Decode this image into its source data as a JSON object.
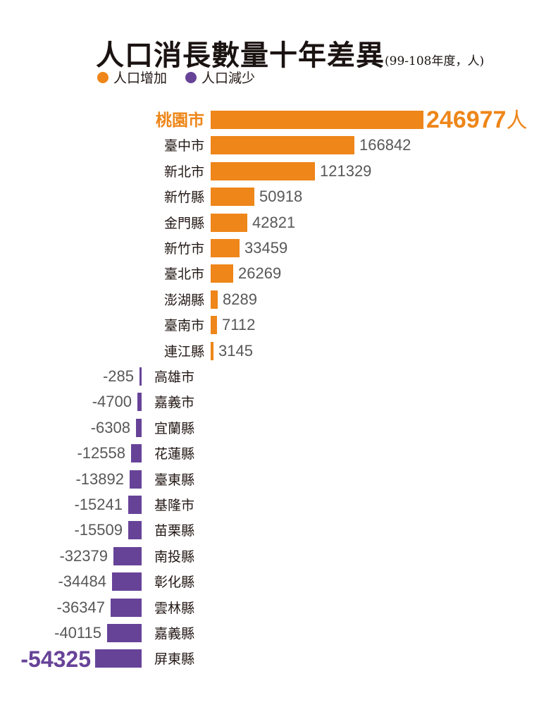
{
  "title": {
    "main": "人口消長數量十年差異",
    "sub": "(99-108年度，人)"
  },
  "legend": [
    {
      "label": "人口增加",
      "color": "#ee8619"
    },
    {
      "label": "人口減少",
      "color": "#674398"
    }
  ],
  "colors": {
    "positive": "#ee8619",
    "negative": "#674398",
    "value_text": "#595757"
  },
  "chart_data": {
    "type": "bar",
    "orientation": "horizontal",
    "title": "人口消長數量十年差異",
    "subtitle": "(99-108年度，人)",
    "unit": "人",
    "legend": [
      "人口增加",
      "人口減少"
    ],
    "legend_position": "top-left",
    "grid": false,
    "categories": [
      "桃園市",
      "臺中市",
      "新北市",
      "新竹縣",
      "金門縣",
      "新竹市",
      "臺北市",
      "澎湖縣",
      "臺南市",
      "連江縣",
      "高雄市",
      "嘉義市",
      "宜蘭縣",
      "花蓮縣",
      "臺東縣",
      "基隆市",
      "苗栗縣",
      "南投縣",
      "彰化縣",
      "雲林縣",
      "嘉義縣",
      "屏東縣"
    ],
    "values": [
      246977,
      166842,
      121329,
      50918,
      42821,
      33459,
      26269,
      8289,
      7112,
      3145,
      -285,
      -4700,
      -6308,
      -12558,
      -13892,
      -15241,
      -15509,
      -32379,
      -34484,
      -36347,
      -40115,
      -54325
    ],
    "highlighted": {
      "max": "桃園市",
      "min": "屏東縣"
    }
  },
  "rows": [
    {
      "name": "桃園市",
      "value": 246977,
      "display": "246977",
      "unit": "人"
    },
    {
      "name": "臺中市",
      "value": 166842,
      "display": "166842"
    },
    {
      "name": "新北市",
      "value": 121329,
      "display": "121329"
    },
    {
      "name": "新竹縣",
      "value": 50918,
      "display": "50918"
    },
    {
      "name": "金門縣",
      "value": 42821,
      "display": "42821"
    },
    {
      "name": "新竹市",
      "value": 33459,
      "display": "33459"
    },
    {
      "name": "臺北市",
      "value": 26269,
      "display": "26269"
    },
    {
      "name": "澎湖縣",
      "value": 8289,
      "display": "8289"
    },
    {
      "name": "臺南市",
      "value": 7112,
      "display": "7112"
    },
    {
      "name": "連江縣",
      "value": 3145,
      "display": "3145"
    },
    {
      "name": "高雄市",
      "value": -285,
      "display": "-285"
    },
    {
      "name": "嘉義市",
      "value": -4700,
      "display": "-4700"
    },
    {
      "name": "宜蘭縣",
      "value": -6308,
      "display": "-6308"
    },
    {
      "name": "花蓮縣",
      "value": -12558,
      "display": "-12558"
    },
    {
      "name": "臺東縣",
      "value": -13892,
      "display": "-13892"
    },
    {
      "name": "基隆市",
      "value": -15241,
      "display": "-15241"
    },
    {
      "name": "苗栗縣",
      "value": -15509,
      "display": "-15509"
    },
    {
      "name": "南投縣",
      "value": -32379,
      "display": "-32379"
    },
    {
      "name": "彰化縣",
      "value": -34484,
      "display": "-34484"
    },
    {
      "name": "雲林縣",
      "value": -36347,
      "display": "-36347"
    },
    {
      "name": "嘉義縣",
      "value": -40115,
      "display": "-40115"
    },
    {
      "name": "屏東縣",
      "value": -54325,
      "display": "-54325"
    }
  ]
}
